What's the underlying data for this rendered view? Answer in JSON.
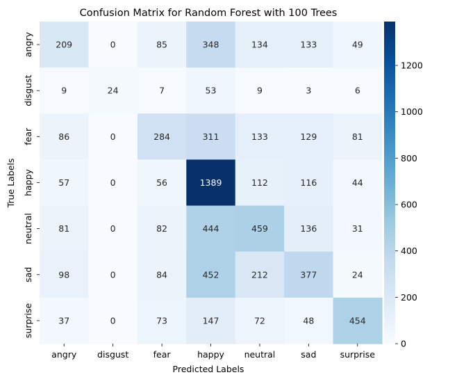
{
  "chart_data": {
    "type": "heatmap",
    "title": "Confusion Matrix for Random Forest with 100 Trees",
    "xlabel": "Predicted Labels",
    "ylabel": "True Labels",
    "x_categories": [
      "angry",
      "disgust",
      "fear",
      "happy",
      "neutral",
      "sad",
      "surprise"
    ],
    "y_categories": [
      "angry",
      "disgust",
      "fear",
      "happy",
      "neutral",
      "sad",
      "surprise"
    ],
    "values": [
      [
        209,
        0,
        85,
        348,
        134,
        133,
        49
      ],
      [
        9,
        24,
        7,
        53,
        9,
        3,
        6
      ],
      [
        86,
        0,
        284,
        311,
        133,
        129,
        81
      ],
      [
        57,
        0,
        56,
        1389,
        112,
        116,
        44
      ],
      [
        81,
        0,
        82,
        444,
        459,
        136,
        31
      ],
      [
        98,
        0,
        84,
        452,
        212,
        377,
        24
      ],
      [
        37,
        0,
        73,
        147,
        72,
        48,
        454
      ]
    ],
    "colorscale": "Blues",
    "colorbar": {
      "range": [
        0,
        1389
      ],
      "ticks": [
        0,
        200,
        400,
        600,
        800,
        1000,
        1200
      ]
    }
  }
}
